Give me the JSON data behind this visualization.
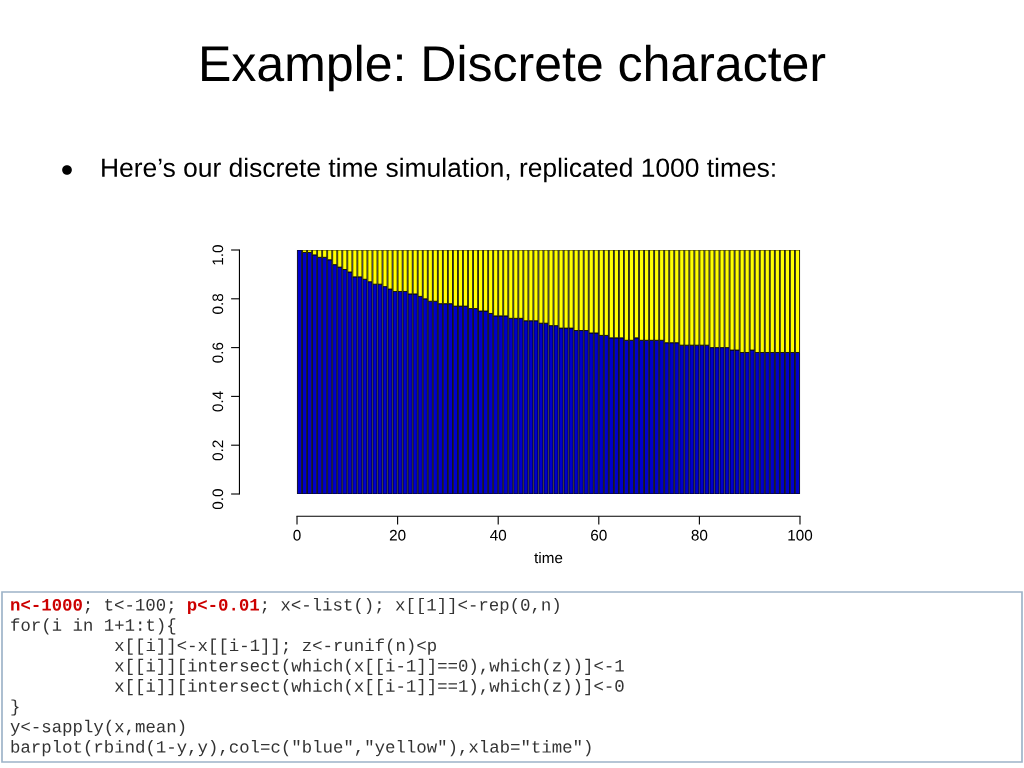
{
  "chart_data": {
    "type": "bar",
    "stacked": true,
    "title": "Example: Discrete character",
    "subtitle": "Here’s our discrete time simulation, replicated 1000 times:",
    "xlabel": "time",
    "x": [
      0.5,
      1.5,
      2.5,
      3.5,
      4.5,
      5.5,
      6.5,
      7.5,
      8.5,
      9.5,
      10.5,
      11.5,
      12.5,
      13.5,
      14.5,
      15.5,
      16.5,
      17.5,
      18.5,
      19.5,
      20.5,
      21.5,
      22.5,
      23.5,
      24.5,
      25.5,
      26.5,
      27.5,
      28.5,
      29.5,
      30.5,
      31.5,
      32.5,
      33.5,
      34.5,
      35.5,
      36.5,
      37.5,
      38.5,
      39.5,
      40.5,
      41.5,
      42.5,
      43.5,
      44.5,
      45.5,
      46.5,
      47.5,
      48.5,
      49.5,
      50.5,
      51.5,
      52.5,
      53.5,
      54.5,
      55.5,
      56.5,
      57.5,
      58.5,
      59.5,
      60.5,
      61.5,
      62.5,
      63.5,
      64.5,
      65.5,
      66.5,
      67.5,
      68.5,
      69.5,
      70.5,
      71.5,
      72.5,
      73.5,
      74.5,
      75.5,
      76.5,
      77.5,
      78.5,
      79.5,
      80.5,
      81.5,
      82.5,
      83.5,
      84.5,
      85.5,
      86.5,
      87.5,
      88.5,
      89.5,
      90.5,
      91.5,
      92.5,
      93.5,
      94.5,
      95.5,
      96.5,
      97.5,
      98.5,
      99.5
    ],
    "series": [
      {
        "color": "#0000cc",
        "values": [
          1.0,
          0.99,
          0.99,
          0.98,
          0.97,
          0.97,
          0.96,
          0.94,
          0.93,
          0.92,
          0.91,
          0.89,
          0.89,
          0.88,
          0.87,
          0.86,
          0.86,
          0.85,
          0.84,
          0.83,
          0.83,
          0.83,
          0.82,
          0.82,
          0.81,
          0.8,
          0.79,
          0.79,
          0.78,
          0.78,
          0.78,
          0.77,
          0.77,
          0.77,
          0.76,
          0.76,
          0.75,
          0.75,
          0.74,
          0.73,
          0.73,
          0.73,
          0.72,
          0.72,
          0.72,
          0.71,
          0.71,
          0.71,
          0.7,
          0.7,
          0.69,
          0.69,
          0.68,
          0.68,
          0.68,
          0.67,
          0.67,
          0.67,
          0.66,
          0.66,
          0.65,
          0.65,
          0.64,
          0.64,
          0.64,
          0.63,
          0.63,
          0.64,
          0.63,
          0.63,
          0.63,
          0.63,
          0.63,
          0.62,
          0.62,
          0.62,
          0.61,
          0.61,
          0.61,
          0.61,
          0.61,
          0.61,
          0.6,
          0.6,
          0.6,
          0.6,
          0.59,
          0.59,
          0.58,
          0.58,
          0.59,
          0.58,
          0.58,
          0.58,
          0.58,
          0.58,
          0.58,
          0.58,
          0.58,
          0.58
        ]
      },
      {
        "color": "#ffff00",
        "values": [
          null,
          0.01,
          0.01,
          0.02,
          0.03,
          0.03,
          0.04,
          0.06,
          0.07,
          0.08,
          0.09,
          0.11,
          0.11,
          0.12,
          0.13,
          0.14,
          0.14,
          0.15,
          0.16,
          0.17,
          0.17,
          0.17,
          0.18,
          0.18,
          0.19,
          0.2,
          0.21,
          0.21,
          0.22,
          0.22,
          0.22,
          0.23,
          0.23,
          0.23,
          0.24,
          0.24,
          0.25,
          0.25,
          0.26,
          0.27,
          0.27,
          0.27,
          0.28,
          0.28,
          0.28,
          0.29,
          0.29,
          0.29,
          0.3,
          0.3,
          0.31,
          0.31,
          0.32,
          0.32,
          0.32,
          0.33,
          0.33,
          0.33,
          0.34,
          0.34,
          0.35,
          0.35,
          0.36,
          0.36,
          0.36,
          0.37,
          0.37,
          0.36,
          0.37,
          0.37,
          0.37,
          0.37,
          0.37,
          0.38,
          0.38,
          0.38,
          0.39,
          0.39,
          0.39,
          0.39,
          0.39,
          0.39,
          0.4,
          0.4,
          0.4,
          0.4,
          0.41,
          0.41,
          0.42,
          0.42,
          0.41,
          0.42,
          0.42,
          0.42,
          0.42,
          0.42,
          0.42,
          0.42,
          0.42,
          0.42
        ]
      }
    ],
    "xlim": [
      -0.4,
      100.4
    ],
    "xticks": [
      0,
      20,
      40,
      60,
      80,
      100
    ],
    "ylim": [
      0,
      1
    ],
    "yticks": [
      {
        "value": 0,
        "label": "0.0"
      },
      {
        "value": 0.2,
        "label": "0.2"
      },
      {
        "value": 0.4,
        "label": "0.4"
      },
      {
        "value": 0.6,
        "label": "0.6"
      },
      {
        "value": 0.8,
        "label": "0.8"
      },
      {
        "value": 1,
        "label": "1.0"
      }
    ],
    "grid": false,
    "legend": false,
    "annotations": [
      "n<-1000",
      "; t<-100; ",
      "p<-0.01",
      "; x<-list(); x[[1]]<-rep(0,n)",
      "for(i in 1+1:t){",
      "          x[[i]]<-x[[i-1]]; z<-runif(n)<p",
      "          x[[i]][intersect(which(x[[i-1]]==0),which(z))]<-1",
      "          x[[i]][intersect(which(x[[i-1]]==1),which(z))]<-0",
      "}",
      "y<-sapply(x,mean)",
      "barplot(rbind(1-y,y),col=c(\"blue\",\"yellow\"),xlab=\"time\")"
    ]
  }
}
